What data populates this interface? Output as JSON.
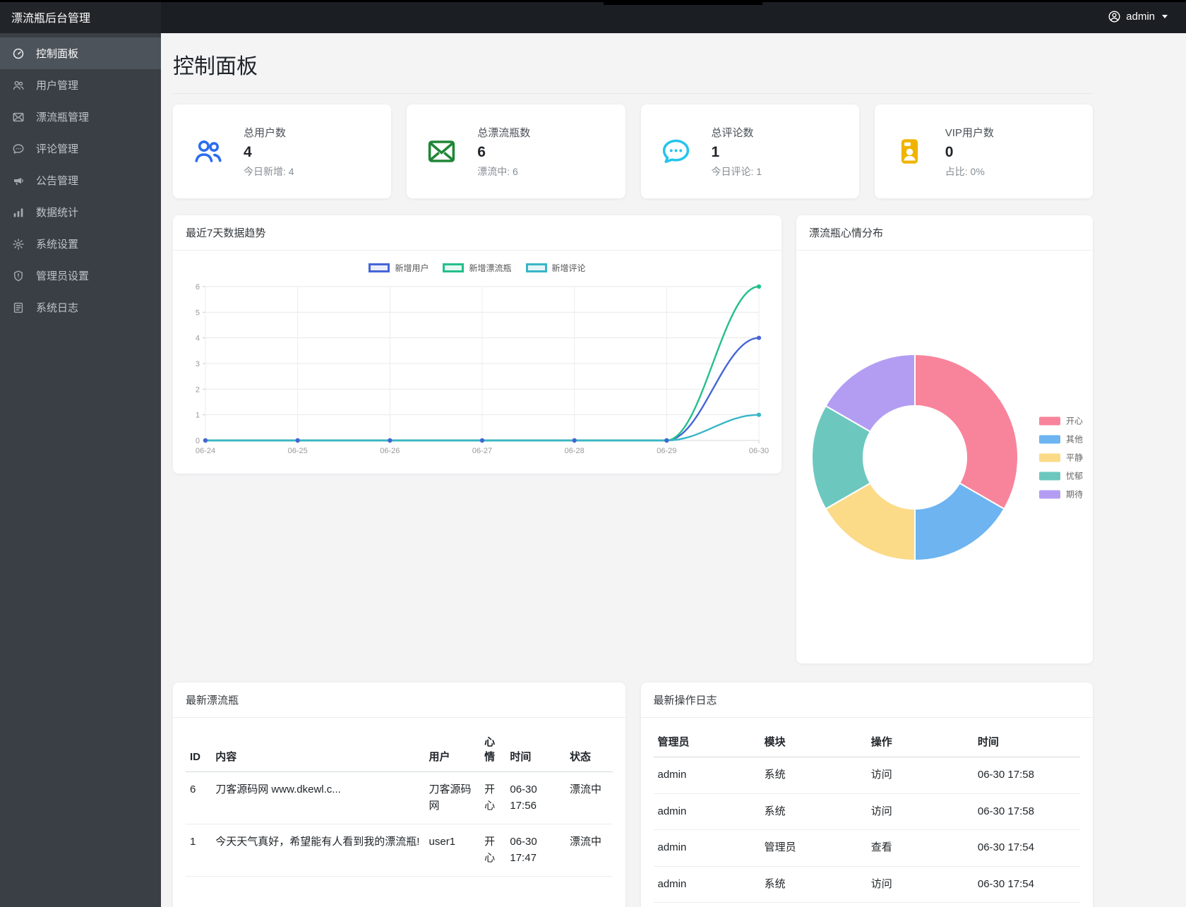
{
  "navbar": {
    "brand": "漂流瓶后台管理",
    "user": "admin"
  },
  "sidebar": {
    "items": [
      {
        "id": "dashboard",
        "icon": "gauge-icon",
        "label": "控制面板",
        "active": true
      },
      {
        "id": "users",
        "icon": "users-icon",
        "label": "用户管理",
        "active": false
      },
      {
        "id": "bottles",
        "icon": "envelope-icon",
        "label": "漂流瓶管理",
        "active": false
      },
      {
        "id": "comments",
        "icon": "comment-icon",
        "label": "评论管理",
        "active": false
      },
      {
        "id": "announcements",
        "icon": "bullhorn-icon",
        "label": "公告管理",
        "active": false
      },
      {
        "id": "statistics",
        "icon": "chart-bar-icon",
        "label": "数据统计",
        "active": false
      },
      {
        "id": "settings",
        "icon": "gear-icon",
        "label": "系统设置",
        "active": false
      },
      {
        "id": "admin-settings",
        "icon": "shield-icon",
        "label": "管理员设置",
        "active": false
      },
      {
        "id": "logs",
        "icon": "file-list-icon",
        "label": "系统日志",
        "active": false
      }
    ]
  },
  "page": {
    "title": "控制面板"
  },
  "stats": [
    {
      "icon": "users-icon",
      "color": "#2b6df0",
      "label": "总用户数",
      "value": "4",
      "sub": "今日新增: 4"
    },
    {
      "icon": "envelope-icon",
      "color": "#208637",
      "label": "总漂流瓶数",
      "value": "6",
      "sub": "漂流中: 6"
    },
    {
      "icon": "comment-icon",
      "color": "#25c4ee",
      "label": "总评论数",
      "value": "1",
      "sub": "今日评论: 1"
    },
    {
      "icon": "id-card-icon",
      "color": "#f0b400",
      "label": "VIP用户数",
      "value": "0",
      "sub": "占比: 0%"
    }
  ],
  "chart_data": [
    {
      "type": "line",
      "title": "最近7天数据趋势",
      "legend_position": "top",
      "grid": true,
      "x": [
        "06-24",
        "06-25",
        "06-26",
        "06-27",
        "06-28",
        "06-29",
        "06-30"
      ],
      "ylim": [
        0,
        6
      ],
      "yticks": [
        0,
        1,
        2,
        3,
        4,
        5,
        6
      ],
      "series": [
        {
          "name": "新增用户",
          "color": "#4565d6",
          "fill": "#e9edfb",
          "values": [
            0,
            0,
            0,
            0,
            0,
            0,
            4
          ]
        },
        {
          "name": "新增漂流瓶",
          "color": "#23bf8b",
          "fill": "#e5f8f1",
          "values": [
            0,
            0,
            0,
            0,
            0,
            0,
            6
          ]
        },
        {
          "name": "新增评论",
          "color": "#38b6c6",
          "fill": "#e4f5f8",
          "values": [
            0,
            0,
            0,
            0,
            0,
            0,
            1
          ]
        }
      ]
    },
    {
      "type": "pie",
      "title": "漂流瓶心情分布",
      "legend_position": "right",
      "cutout": "50%",
      "labels": [
        "开心",
        "其他",
        "平静",
        "忧郁",
        "期待"
      ],
      "values": [
        2,
        1,
        1,
        1,
        1
      ],
      "colors": [
        "#f8849b",
        "#6db4f1",
        "#fbdb87",
        "#6cc8bf",
        "#b39df3"
      ]
    }
  ],
  "tables": {
    "bottles": {
      "title": "最新漂流瓶",
      "headers": [
        "ID",
        "内容",
        "用户",
        "心情",
        "时间",
        "状态"
      ],
      "rows": [
        [
          "6",
          "刀客源码网 www.dkewl.c...",
          "刀客源码网",
          "开心",
          "06-30 17:56",
          "漂流中"
        ],
        [
          "1",
          "今天天气真好，希望能有人看到我的漂流瓶!",
          "user1",
          "开心",
          "06-30 17:47",
          "漂流中"
        ]
      ]
    },
    "logs": {
      "title": "最新操作日志",
      "headers": [
        "管理员",
        "模块",
        "操作",
        "时间"
      ],
      "rows": [
        [
          "admin",
          "系统",
          "访问",
          "06-30 17:58"
        ],
        [
          "admin",
          "系统",
          "访问",
          "06-30 17:58"
        ],
        [
          "admin",
          "管理员",
          "查看",
          "06-30 17:54"
        ],
        [
          "admin",
          "系统",
          "访问",
          "06-30 17:54"
        ]
      ]
    }
  }
}
